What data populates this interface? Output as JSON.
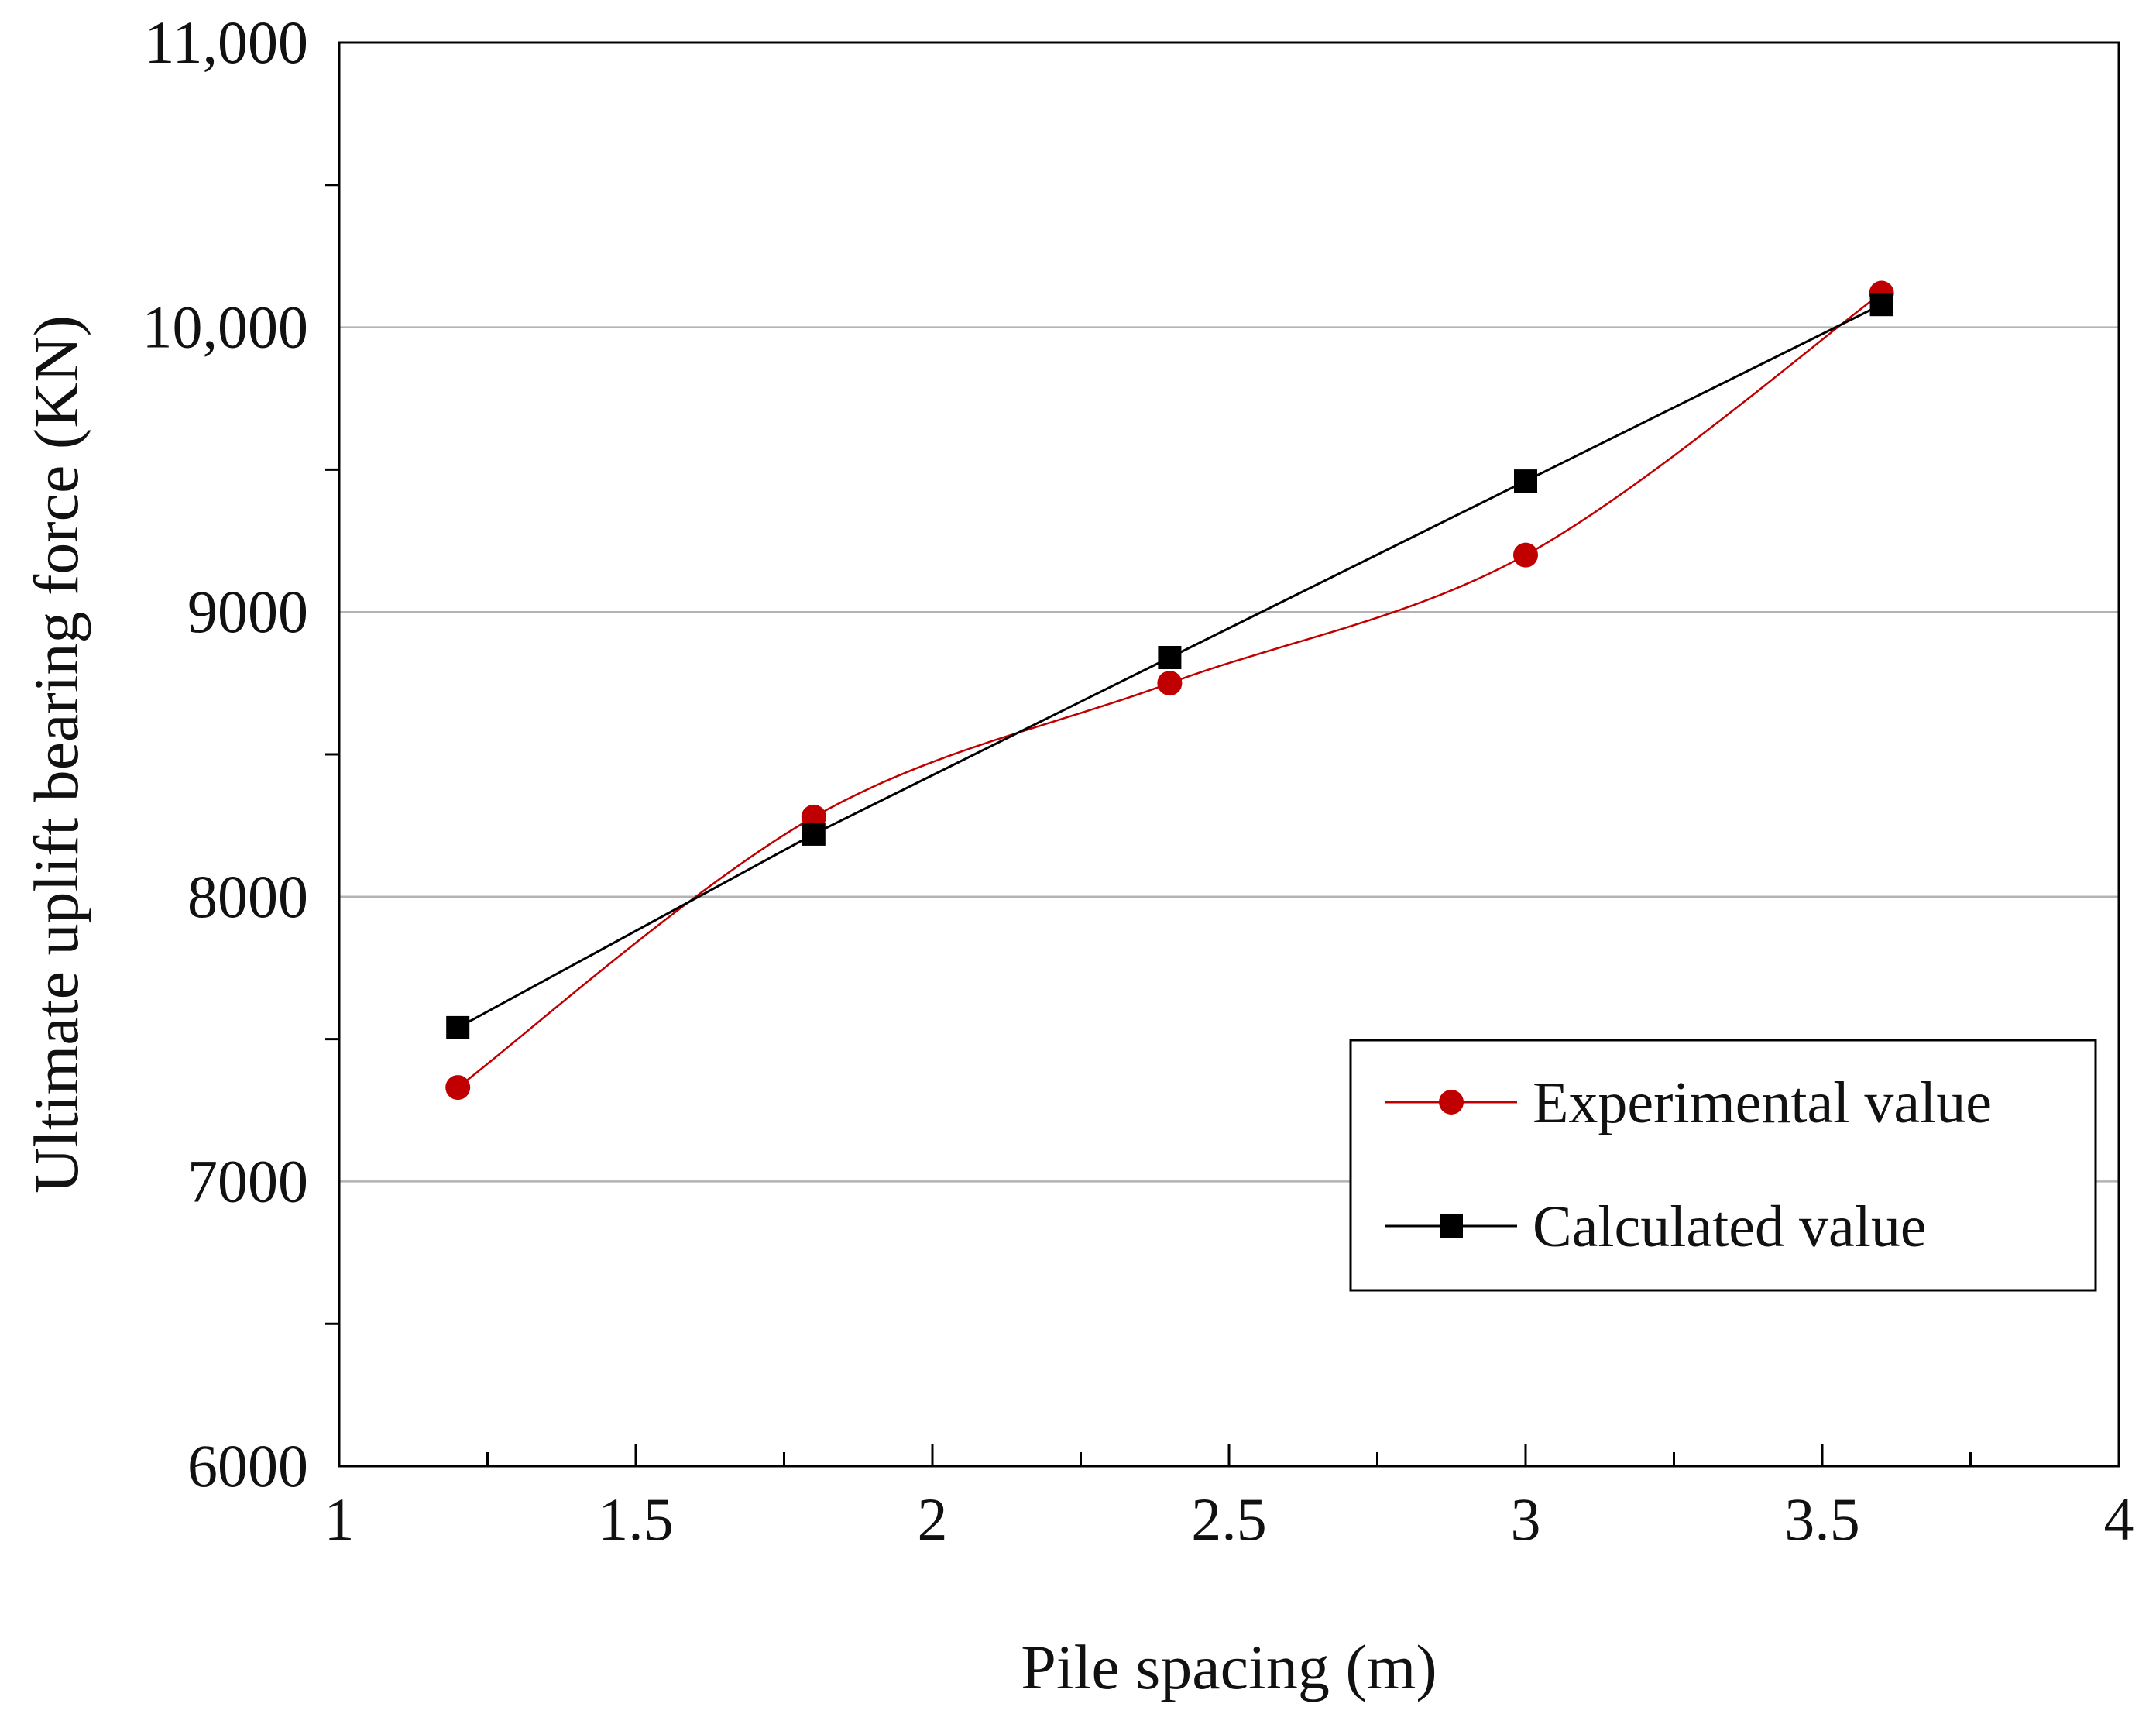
{
  "chart_data": {
    "type": "line",
    "title": "",
    "xlabel": "Pile spacing (m)",
    "ylabel": "Ultimate uplift bearing force (KN)",
    "xlim": [
      1,
      4
    ],
    "ylim": [
      6000,
      11000
    ],
    "x_major_ticks": [
      1,
      1.5,
      2,
      2.5,
      3,
      3.5,
      4
    ],
    "x_tick_labels": [
      "1",
      "1.5",
      "2",
      "2.5",
      "3",
      "3.5",
      "4"
    ],
    "y_major_ticks": [
      6000,
      7000,
      8000,
      9000,
      10000,
      11000
    ],
    "y_tick_labels": [
      "6000",
      "7000",
      "8000",
      "9000",
      "10,000",
      "11,000"
    ],
    "grid": "horizontal major",
    "legend_position": "lower-right",
    "series": [
      {
        "name": "Experimental value",
        "color": "#c00000",
        "marker": "circle",
        "smooth": true,
        "x": [
          1.2,
          1.8,
          2.4,
          3.0,
          3.6
        ],
        "y": [
          7330,
          8280,
          8750,
          9200,
          10120
        ]
      },
      {
        "name": "Calculated value",
        "color": "#000000",
        "marker": "square",
        "smooth": false,
        "x": [
          1.2,
          1.8,
          2.4,
          3.0,
          3.6
        ],
        "y": [
          7540,
          8220,
          8840,
          9460,
          10080
        ]
      }
    ]
  }
}
